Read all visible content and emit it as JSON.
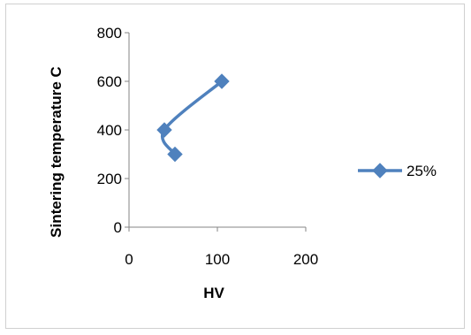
{
  "chart_data": {
    "type": "scatter",
    "xlabel": "HV",
    "ylabel": "Sintering temperature C",
    "xlim": [
      0,
      200
    ],
    "ylim": [
      0,
      800
    ],
    "xticks": [
      "0",
      "100",
      "200"
    ],
    "yticks": [
      "0",
      "200",
      "400",
      "600",
      "800"
    ],
    "grid": false,
    "legend_position": "right",
    "series": [
      {
        "name": "25%",
        "color": "#4f81bd",
        "marker": "diamond",
        "line": "smooth",
        "points": [
          {
            "x": 52,
            "y": 300
          },
          {
            "x": 40,
            "y": 400
          },
          {
            "x": 105,
            "y": 600
          }
        ]
      }
    ]
  }
}
